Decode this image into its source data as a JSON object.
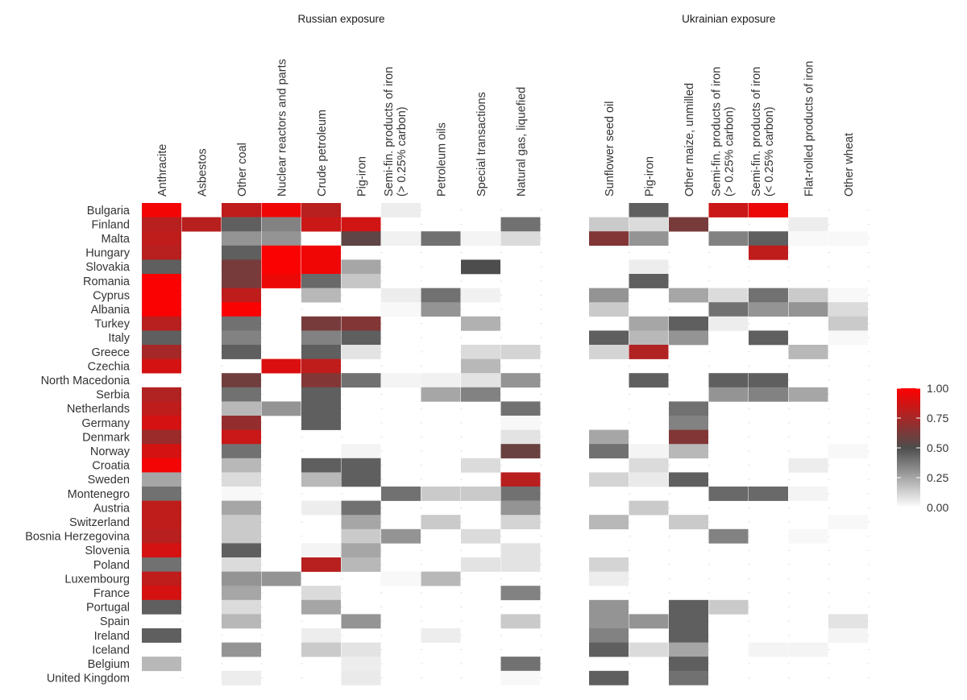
{
  "chart_data": {
    "type": "heatmap",
    "title": "",
    "xlabel": "",
    "ylabel": "",
    "value_range": [
      0,
      1
    ],
    "colorscale": [
      "#ffffff",
      "#4d4d4d",
      "#ff0000"
    ],
    "colorbar": {
      "ticks": [
        1.0,
        0.75,
        0.5,
        0.25,
        0.0
      ],
      "tick_labels": [
        "1.00",
        "0.75",
        "0.50",
        "0.25",
        "0.00"
      ],
      "placement": "right"
    },
    "countries": [
      "Bulgaria",
      "Finland",
      "Malta",
      "Hungary",
      "Slovakia",
      "Romania",
      "Cyprus",
      "Albania",
      "Turkey",
      "Italy",
      "Greece",
      "Czechia",
      "North Macedonia",
      "Serbia",
      "Netherlands",
      "Germany",
      "Denmark",
      "Norway",
      "Croatia",
      "Sweden",
      "Montenegro",
      "Austria",
      "Switzerland",
      "Bosnia Herzegovina",
      "Slovenia",
      "Poland",
      "Luxembourg",
      "France",
      "Portugal",
      "Spain",
      "Ireland",
      "Iceland",
      "Belgium",
      "United Kingdom"
    ],
    "panels": [
      {
        "name": "Russian exposure",
        "products": [
          "Anthracite",
          "Asbestos",
          "Other coal",
          "Nuclear reactors and parts",
          "Crude petroleum",
          "Pig-iron",
          "Semi-fin. products of iron\n(> 0.25% carbon)",
          "Petroleum oils",
          "Special transactions",
          "Natural gas, liquefied"
        ],
        "values": [
          [
            0.97,
            null,
            0.82,
            0.96,
            0.8,
            null,
            0.05,
            null,
            null,
            null
          ],
          [
            0.8,
            0.8,
            0.45,
            0.35,
            0.85,
            0.87,
            null,
            null,
            null,
            0.4
          ],
          [
            0.82,
            null,
            0.3,
            0.3,
            null,
            0.55,
            0.04,
            0.4,
            0.03,
            0.1
          ],
          [
            0.8,
            null,
            0.45,
            0.99,
            0.96,
            null,
            null,
            null,
            null,
            null
          ],
          [
            0.45,
            null,
            0.62,
            0.99,
            0.96,
            0.25,
            null,
            null,
            0.5,
            null
          ],
          [
            0.99,
            null,
            0.62,
            0.95,
            0.42,
            0.16,
            null,
            null,
            null,
            null
          ],
          [
            0.99,
            null,
            0.82,
            null,
            0.2,
            null,
            0.05,
            0.4,
            0.04,
            null
          ],
          [
            0.99,
            null,
            0.99,
            null,
            null,
            null,
            0.02,
            0.3,
            null,
            null
          ],
          [
            0.8,
            null,
            0.4,
            null,
            0.62,
            0.65,
            null,
            null,
            0.22,
            null
          ],
          [
            0.45,
            null,
            0.35,
            null,
            0.35,
            0.45,
            null,
            null,
            null,
            null
          ],
          [
            0.75,
            null,
            0.45,
            null,
            0.45,
            0.08,
            null,
            null,
            0.1,
            0.12
          ],
          [
            0.88,
            null,
            null,
            0.9,
            0.82,
            null,
            null,
            null,
            0.2,
            null
          ],
          [
            null,
            null,
            0.6,
            null,
            0.65,
            0.4,
            0.03,
            0.04,
            0.08,
            0.3
          ],
          [
            0.78,
            null,
            0.4,
            null,
            0.45,
            null,
            null,
            0.25,
            0.35,
            null
          ],
          [
            0.82,
            null,
            0.2,
            0.3,
            0.45,
            null,
            null,
            null,
            null,
            0.4
          ],
          [
            0.88,
            null,
            0.7,
            null,
            0.45,
            null,
            null,
            null,
            null,
            0.02
          ],
          [
            0.72,
            null,
            0.85,
            null,
            null,
            null,
            null,
            null,
            null,
            0.08
          ],
          [
            0.88,
            null,
            0.4,
            null,
            null,
            0.03,
            null,
            null,
            null,
            0.58
          ],
          [
            0.97,
            null,
            0.2,
            null,
            0.45,
            0.45,
            null,
            null,
            0.1,
            null
          ],
          [
            0.25,
            null,
            0.1,
            null,
            0.2,
            0.45,
            null,
            null,
            null,
            0.8
          ],
          [
            0.4,
            null,
            0.02,
            null,
            null,
            null,
            0.4,
            0.15,
            0.15,
            0.4
          ],
          [
            0.82,
            null,
            0.25,
            null,
            0.05,
            0.4,
            null,
            null,
            null,
            0.3
          ],
          [
            0.82,
            null,
            0.15,
            null,
            null,
            0.25,
            null,
            0.15,
            null,
            0.12
          ],
          [
            0.8,
            null,
            0.15,
            null,
            null,
            0.15,
            0.3,
            null,
            0.1,
            null
          ],
          [
            0.88,
            null,
            0.45,
            null,
            0.03,
            0.25,
            null,
            null,
            null,
            0.08
          ],
          [
            0.4,
            null,
            0.1,
            null,
            0.8,
            0.2,
            null,
            null,
            0.08,
            0.08
          ],
          [
            0.82,
            null,
            0.3,
            0.3,
            null,
            null,
            0.02,
            0.2,
            null,
            null
          ],
          [
            0.88,
            null,
            0.25,
            null,
            0.1,
            null,
            null,
            null,
            null,
            0.35
          ],
          [
            0.45,
            null,
            0.1,
            null,
            0.25,
            null,
            null,
            null,
            null,
            null
          ],
          [
            null,
            null,
            0.2,
            null,
            null,
            0.3,
            null,
            null,
            null,
            0.15
          ],
          [
            0.45,
            null,
            null,
            null,
            0.05,
            null,
            null,
            0.05,
            null,
            null
          ],
          [
            null,
            null,
            0.3,
            null,
            0.15,
            0.08,
            null,
            null,
            null,
            null
          ],
          [
            0.2,
            null,
            null,
            null,
            null,
            0.05,
            null,
            null,
            null,
            0.4
          ],
          [
            null,
            null,
            0.05,
            null,
            null,
            0.06,
            null,
            null,
            null,
            0.02
          ]
        ]
      },
      {
        "name": "Ukrainian exposure",
        "products": [
          "Sunflower seed oil",
          "Pig-iron",
          "Other maize, unmilled",
          "Semi-fin. products of iron\n(> 0.25% carbon)",
          "Semi-fin. products of iron\n(< 0.25% carbon)",
          "Flat-rolled products of iron",
          "Other wheat"
        ],
        "values": [
          [
            null,
            0.45,
            null,
            0.85,
            0.95,
            null,
            null
          ],
          [
            0.15,
            0.1,
            0.62,
            null,
            null,
            0.05,
            null
          ],
          [
            0.65,
            0.3,
            null,
            0.35,
            0.45,
            0.02,
            0.02
          ],
          [
            null,
            null,
            null,
            null,
            0.82,
            null,
            null
          ],
          [
            null,
            0.05,
            null,
            null,
            null,
            null,
            null
          ],
          [
            null,
            0.45,
            null,
            null,
            null,
            null,
            null
          ],
          [
            0.3,
            null,
            0.25,
            0.1,
            0.4,
            0.15,
            0.02
          ],
          [
            0.15,
            null,
            null,
            0.4,
            0.3,
            0.3,
            0.1
          ],
          [
            null,
            0.25,
            0.45,
            0.05,
            null,
            null,
            0.15
          ],
          [
            0.45,
            0.2,
            0.3,
            null,
            0.45,
            null,
            0.02
          ],
          [
            0.12,
            0.78,
            null,
            null,
            null,
            0.2,
            null
          ],
          [
            null,
            null,
            null,
            null,
            null,
            null,
            null
          ],
          [
            null,
            0.45,
            null,
            0.45,
            0.45,
            null,
            null
          ],
          [
            null,
            null,
            null,
            0.3,
            0.35,
            0.25,
            null
          ],
          [
            null,
            null,
            0.4,
            null,
            null,
            null,
            null
          ],
          [
            null,
            null,
            0.35,
            null,
            null,
            null,
            null
          ],
          [
            0.25,
            null,
            0.65,
            null,
            null,
            null,
            null
          ],
          [
            0.4,
            0.03,
            0.2,
            null,
            null,
            null,
            0.02
          ],
          [
            null,
            0.1,
            null,
            null,
            null,
            0.05,
            null
          ],
          [
            0.12,
            0.06,
            0.45,
            null,
            null,
            null,
            null
          ],
          [
            null,
            null,
            null,
            0.42,
            0.42,
            0.03,
            null
          ],
          [
            null,
            0.15,
            null,
            null,
            null,
            null,
            null
          ],
          [
            0.2,
            null,
            0.15,
            null,
            null,
            null,
            0.02
          ],
          [
            null,
            null,
            null,
            0.35,
            null,
            0.02,
            null
          ],
          [
            null,
            null,
            null,
            null,
            null,
            null,
            null
          ],
          [
            0.12,
            null,
            null,
            null,
            null,
            null,
            null
          ],
          [
            0.05,
            null,
            null,
            null,
            null,
            null,
            null
          ],
          [
            null,
            null,
            null,
            null,
            null,
            null,
            null
          ],
          [
            0.3,
            null,
            0.45,
            0.15,
            null,
            null,
            null
          ],
          [
            0.3,
            0.3,
            0.45,
            null,
            null,
            null,
            0.08
          ],
          [
            0.35,
            null,
            0.45,
            null,
            null,
            null,
            0.03
          ],
          [
            0.45,
            0.1,
            0.25,
            null,
            0.03,
            0.03,
            null
          ],
          [
            null,
            null,
            0.45,
            null,
            null,
            null,
            null
          ],
          [
            0.45,
            null,
            0.4,
            null,
            null,
            null,
            null
          ]
        ]
      }
    ]
  }
}
